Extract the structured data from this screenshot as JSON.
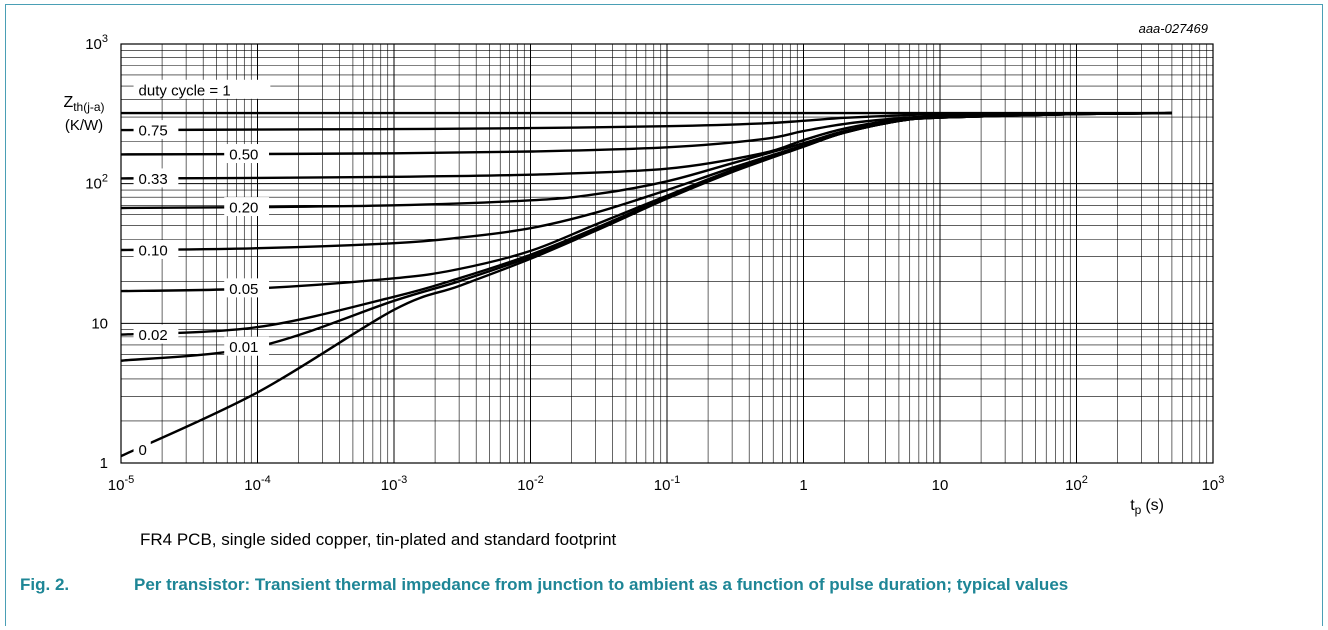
{
  "chart_data": {
    "type": "line",
    "id_label": "aaa-027469",
    "ylabel_main": "Z",
    "ylabel_sub": "th(j-a)",
    "ylabel_unit": "(K/W)",
    "xlabel_main": "t",
    "xlabel_sub": "p",
    "xlabel_unit": "(s)",
    "x_scale": "log",
    "y_scale": "log",
    "xlim": [
      1e-05,
      1000
    ],
    "ylim": [
      1,
      1000
    ],
    "grid": true,
    "x_ticks": [
      {
        "base": "10",
        "exp": "-5",
        "v": 1e-05
      },
      {
        "base": "10",
        "exp": "-4",
        "v": 0.0001
      },
      {
        "base": "10",
        "exp": "-3",
        "v": 0.001
      },
      {
        "base": "10",
        "exp": "-2",
        "v": 0.01
      },
      {
        "base": "10",
        "exp": "-1",
        "v": 0.1
      },
      {
        "base": "1",
        "exp": "",
        "v": 1
      },
      {
        "base": "10",
        "exp": "",
        "v": 10
      },
      {
        "base": "10",
        "exp": "2",
        "v": 100
      },
      {
        "base": "10",
        "exp": "3",
        "v": 1000
      }
    ],
    "y_ticks": [
      {
        "base": "1",
        "exp": "",
        "v": 1
      },
      {
        "base": "10",
        "exp": "",
        "v": 10
      },
      {
        "base": "10",
        "exp": "2",
        "v": 100
      },
      {
        "base": "10",
        "exp": "3",
        "v": 1000
      }
    ],
    "series": [
      {
        "name": "duty cycle = 1",
        "x": [
          1e-05,
          0.001,
          0.1,
          1,
          10,
          100,
          500
        ],
        "y": [
          320,
          320,
          320,
          320,
          320,
          320,
          320
        ]
      },
      {
        "name": "0.75",
        "x": [
          1e-05,
          0.0001,
          0.001,
          0.01,
          0.1,
          0.5,
          1,
          2,
          5,
          10,
          100,
          500
        ],
        "y": [
          242,
          244,
          246,
          250,
          258,
          270,
          282,
          296,
          308,
          314,
          318,
          320
        ]
      },
      {
        "name": "0.50",
        "x": [
          1e-05,
          0.0001,
          0.001,
          0.01,
          0.1,
          0.5,
          1,
          2,
          5,
          10,
          100,
          500
        ],
        "y": [
          162,
          163,
          165,
          170,
          182,
          208,
          238,
          268,
          294,
          304,
          316,
          320
        ]
      },
      {
        "name": "0.33",
        "x": [
          1e-05,
          0.0001,
          0.001,
          0.01,
          0.1,
          0.5,
          1,
          2,
          5,
          10,
          100,
          500
        ],
        "y": [
          109,
          110,
          112,
          116,
          128,
          165,
          205,
          248,
          288,
          300,
          315,
          320
        ]
      },
      {
        "name": "0.20",
        "x": [
          1e-05,
          0.0001,
          0.001,
          0.01,
          0.03,
          0.1,
          0.3,
          1,
          2,
          5,
          10,
          100,
          500
        ],
        "y": [
          67,
          68,
          70,
          76,
          84,
          104,
          140,
          195,
          238,
          284,
          298,
          315,
          320
        ]
      },
      {
        "name": "0.10",
        "x": [
          1e-05,
          0.0001,
          0.001,
          0.003,
          0.01,
          0.03,
          0.1,
          0.3,
          1,
          2,
          5,
          10,
          100,
          500
        ],
        "y": [
          33.5,
          34.5,
          37.5,
          41,
          48,
          62,
          90,
          130,
          188,
          234,
          282,
          297,
          315,
          320
        ]
      },
      {
        "name": "0.05",
        "x": [
          1e-05,
          0.0001,
          0.001,
          0.003,
          0.01,
          0.03,
          0.1,
          0.3,
          1,
          2,
          5,
          10,
          100,
          500
        ],
        "y": [
          17,
          17.8,
          21,
          24.5,
          33,
          51,
          82,
          125,
          186,
          233,
          282,
          297,
          315,
          320
        ]
      },
      {
        "name": "0.02",
        "x": [
          1e-05,
          0.0001,
          0.001,
          0.003,
          0.01,
          0.03,
          0.1,
          0.3,
          1,
          2,
          5,
          10,
          100,
          500
        ],
        "y": [
          8.3,
          9.4,
          15.5,
          21,
          31,
          48,
          80,
          123,
          185,
          232,
          281,
          297,
          315,
          320
        ]
      },
      {
        "name": "0.01",
        "x": [
          1e-05,
          0.0001,
          0.001,
          0.003,
          0.01,
          0.03,
          0.1,
          0.3,
          1,
          2,
          5,
          10,
          100,
          500
        ],
        "y": [
          5.4,
          6.8,
          14.5,
          20,
          30,
          47,
          79,
          122,
          185,
          232,
          281,
          297,
          315,
          320
        ]
      },
      {
        "name": "0",
        "x": [
          1e-05,
          0.0001,
          0.001,
          0.003,
          0.01,
          0.03,
          0.1,
          0.3,
          1,
          2,
          5,
          10,
          100,
          500
        ],
        "y": [
          1.12,
          3.2,
          12.5,
          18.5,
          29,
          46,
          78,
          121,
          184,
          232,
          281,
          297,
          315,
          320
        ]
      }
    ],
    "series_labels": [
      {
        "text": "duty cycle = 1",
        "x": 1.3e-05,
        "y": 470
      },
      {
        "text": "0.75",
        "x": 1.3e-05,
        "y": 242
      },
      {
        "text": "0.50",
        "x": 6e-05,
        "y": 163
      },
      {
        "text": "0.33",
        "x": 1.3e-05,
        "y": 109
      },
      {
        "text": "0.20",
        "x": 6e-05,
        "y": 68
      },
      {
        "text": "0.10",
        "x": 1.3e-05,
        "y": 33.5
      },
      {
        "text": "0.05",
        "x": 6e-05,
        "y": 17.8
      },
      {
        "text": "0.02",
        "x": 1.3e-05,
        "y": 8.3
      },
      {
        "text": "0.01",
        "x": 6e-05,
        "y": 6.8
      },
      {
        "text": "0",
        "x": 1.3e-05,
        "y": 1.25
      }
    ]
  },
  "figure": {
    "note": "FR4 PCB, single sided copper, tin-plated and standard footprint",
    "number": "Fig. 2.",
    "caption": "Per transistor: Transient thermal impedance from junction to ambient as a function of pulse duration; typical values"
  },
  "colors": {
    "frame": "#4a9fb5",
    "caption": "#1e8696",
    "curves": "#000000",
    "grid": "#000000"
  }
}
